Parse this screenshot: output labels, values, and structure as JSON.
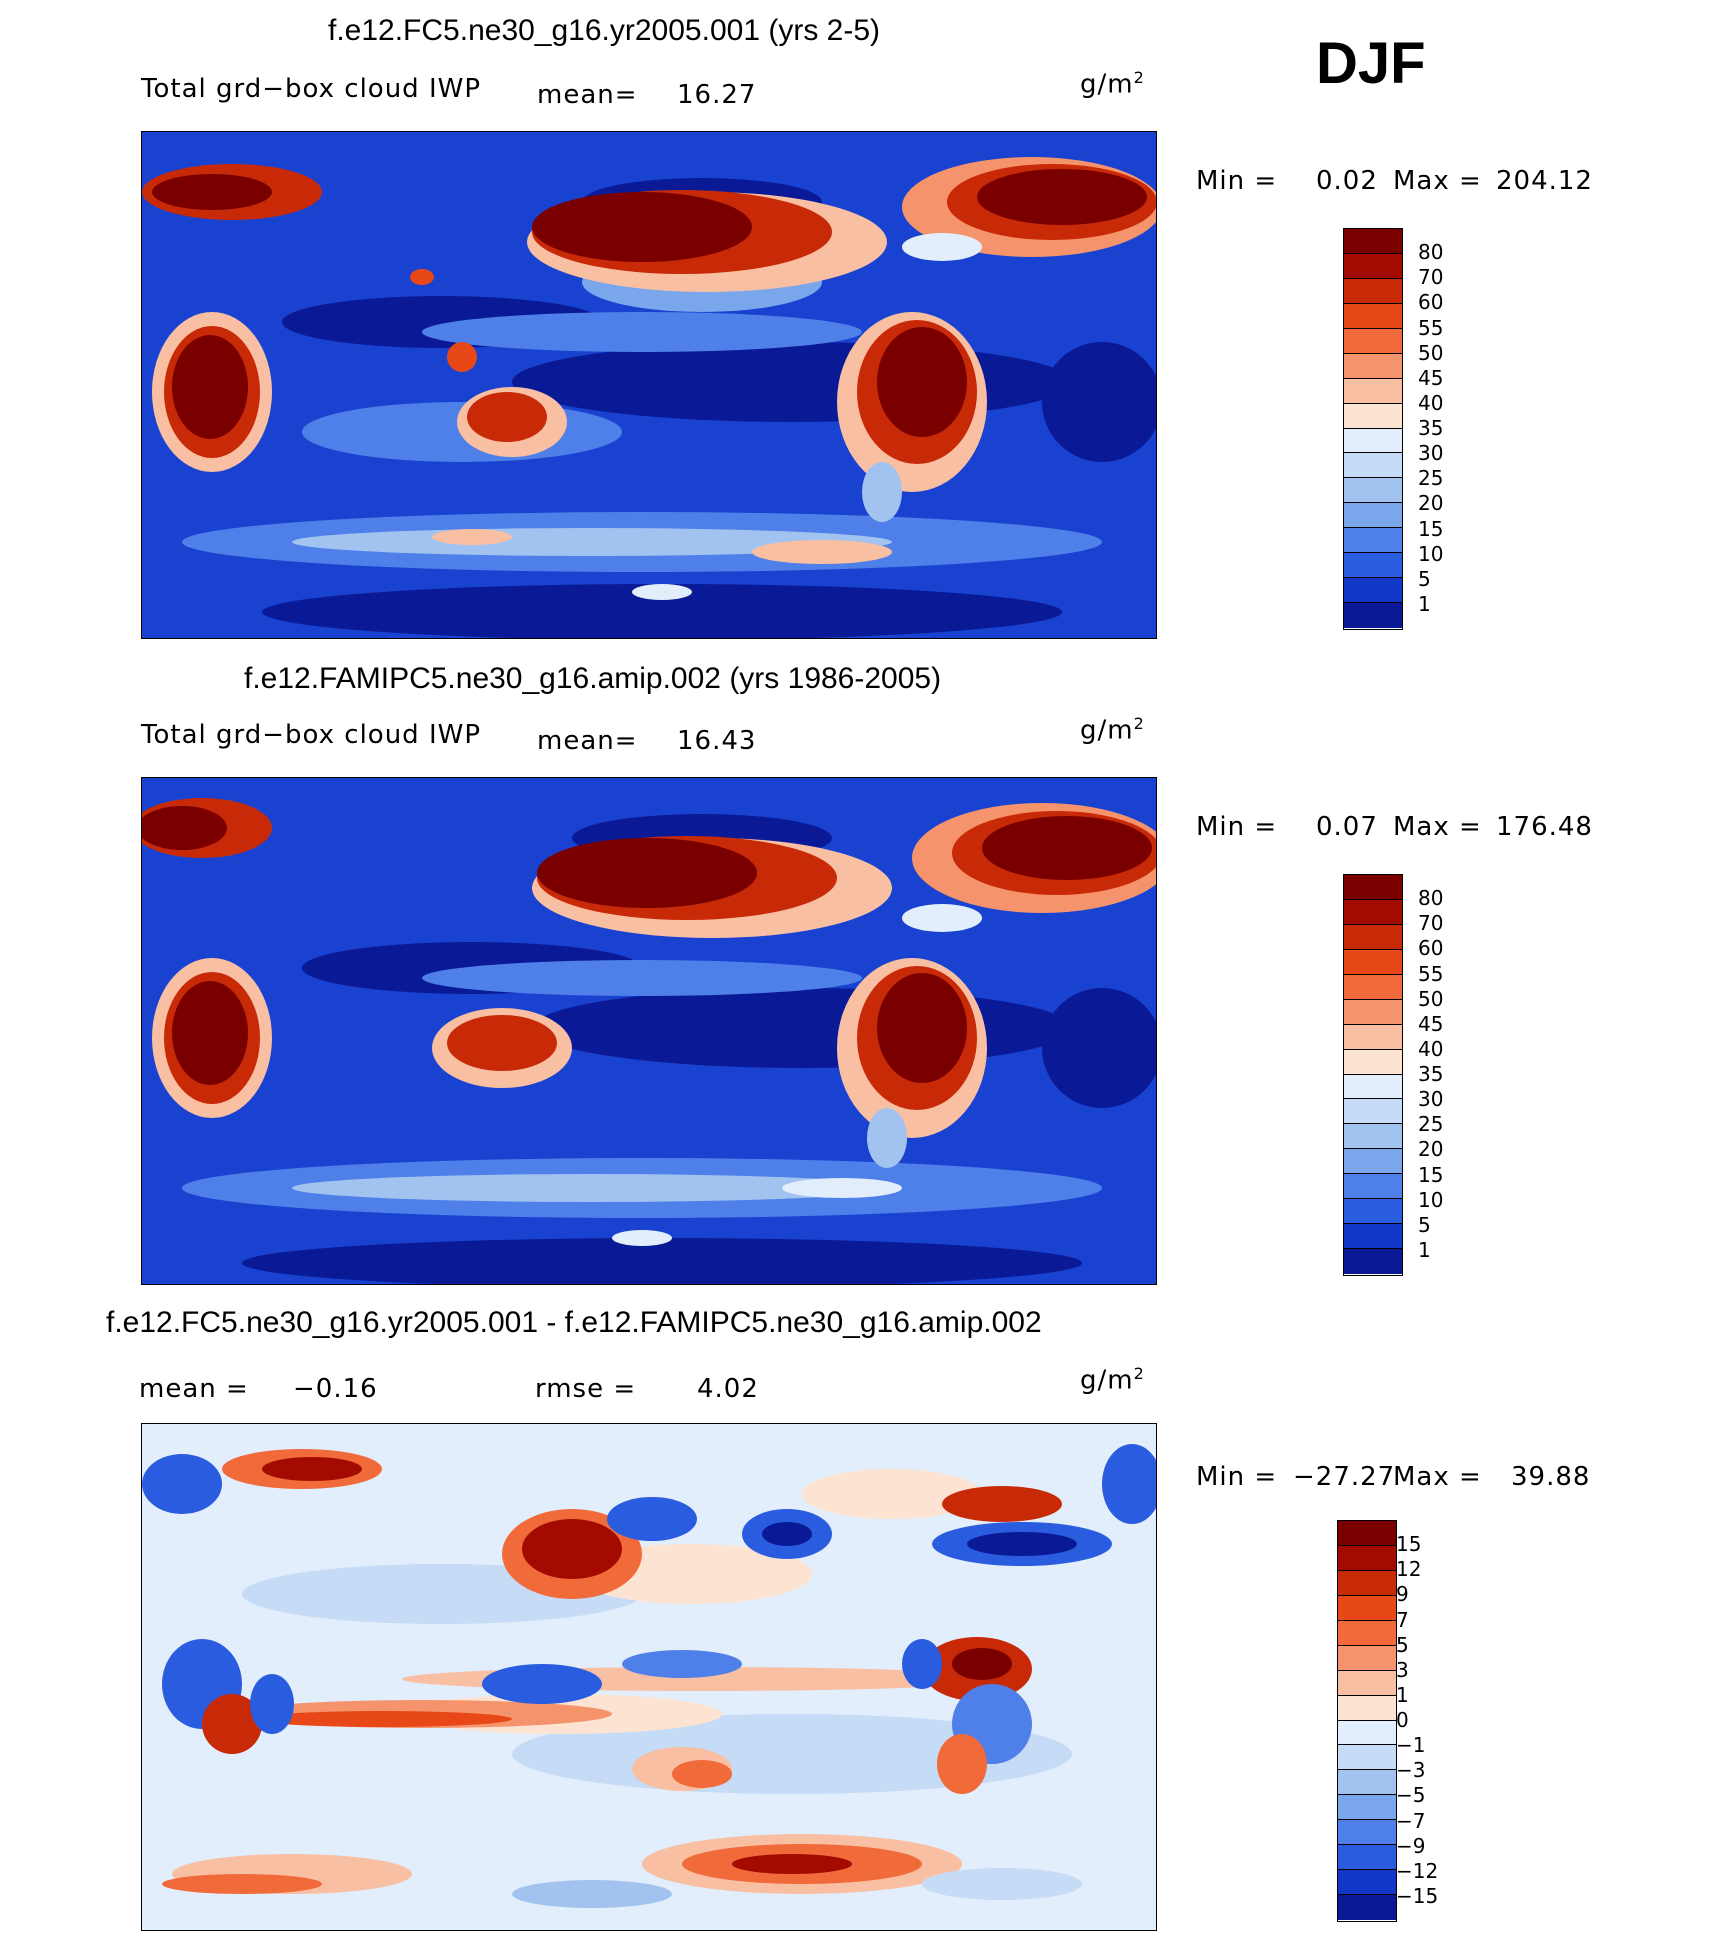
{
  "season": "DJF",
  "units_base": "g/m",
  "units_exp": "2",
  "panels": [
    {
      "title": "f.e12.FC5.ne30_g16.yr2005.001 (yrs 2-5)",
      "variable": "Total grd−box cloud IWP",
      "mean_label": "mean=",
      "mean_value": "16.27",
      "minmax": {
        "min_label": "Min =",
        "min": "0.02",
        "max_label": "Max =",
        "max": "204.12"
      }
    },
    {
      "title": "f.e12.FAMIPC5.ne30_g16.amip.002 (yrs 1986-2005)",
      "variable": "Total grd−box cloud IWP",
      "mean_label": "mean=",
      "mean_value": "16.43",
      "minmax": {
        "min_label": "Min =",
        "min": "0.07",
        "max_label": "Max =",
        "max": "176.48"
      }
    },
    {
      "title": "f.e12.FC5.ne30_g16.yr2005.001 - f.e12.FAMIPC5.ne30_g16.amip.002",
      "mean_label": "mean =",
      "mean_value": "−0.16",
      "rmse_label": "rmse =",
      "rmse_value": "4.02",
      "minmax": {
        "min_label": "Min =",
        "min": "−27.27",
        "max_label": "Max =",
        "max": "39.88"
      }
    }
  ],
  "colorbar_abs": {
    "labels": [
      "80",
      "70",
      "60",
      "55",
      "50",
      "45",
      "40",
      "35",
      "30",
      "25",
      "20",
      "15",
      "10",
      "5",
      "1"
    ],
    "colors": [
      "#7a0000",
      "#a30a00",
      "#c82a08",
      "#e84818",
      "#f06a3a",
      "#f5946c",
      "#f9bfa3",
      "#fde4d2",
      "#e2eefb",
      "#c6dbf5",
      "#a2c3f0",
      "#7aa6ec",
      "#4f7fe8",
      "#2a5ce0",
      "#1238c8",
      "#0a1a96"
    ]
  },
  "colorbar_diff": {
    "labels": [
      "15",
      "12",
      "9",
      "7",
      "5",
      "3",
      "1",
      "0",
      "−1",
      "−3",
      "−5",
      "−7",
      "−9",
      "−12",
      "−15"
    ],
    "colors": [
      "#7a0000",
      "#a30a00",
      "#c82a08",
      "#e84818",
      "#f06a3a",
      "#f5946c",
      "#f9bfa3",
      "#fde4d2",
      "#e2eefb",
      "#c6dbf5",
      "#a2c3f0",
      "#7aa6ec",
      "#4f7fe8",
      "#2a5ce0",
      "#1238c8",
      "#0a1a96"
    ]
  }
}
